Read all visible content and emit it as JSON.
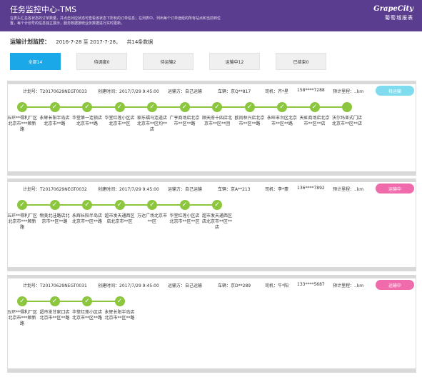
{
  "header": {
    "title": "任务监控中心-TMS",
    "desc": "在表头汇总各状态的订单数量，并点击对应状态可查看该状态下所有的订单信息；在列表中，列出每个订单途经的所有站点和当前到位置，每个计划号的信息独立展示，服务数据按统业务数据进行实时更新。",
    "logo_mark": "GrapeCity",
    "logo_cn": "葡萄城报表"
  },
  "summary": {
    "label": "运输计划监控：",
    "date_range": "2016-7-28 至 2017-7-28，",
    "count": "共14条数据"
  },
  "filters": [
    {
      "label": "全部14",
      "active": true
    },
    {
      "label": "待调度0",
      "active": false
    },
    {
      "label": "待运输2",
      "active": false
    },
    {
      "label": "运输中12",
      "active": false
    },
    {
      "label": "已结束0",
      "active": false
    }
  ],
  "orders": [
    {
      "plan": "计划号：T20170629NEGT0033",
      "created": "创建时间：2017/7/29 9:45:00",
      "carrier": "运输方：自己运输",
      "vehicle": "车辆：京Q**817",
      "driver": "司机：齐*星",
      "phone": "158****7288",
      "mileage": "预计里程：..km",
      "status": "待运输",
      "status_color": "#7fdcef",
      "stops": [
        "五环**得利厂区北京市***顺新路",
        "永辉长阳半岛店北京市**路",
        "华堂第一连锁店北京市**路",
        "华堂红莲小区店北京市**区",
        "家乐福马连道店北京市**区均**店",
        "广亨商场店北京市**区**路",
        "顺天府十四店北京市**区**团",
        "欧尚林兴店北京市**区**路",
        "永旺丰台区北京市**区**路",
        "天虹商场店北京市**区**店",
        "沃尔玛亚式门店北京市**区**店"
      ],
      "done": 10
    },
    {
      "plan": "计划号：T20170629NEGT0032",
      "created": "创建时间：2017/7/29 9:45:00",
      "carrier": "运输方：自己运输",
      "vehicle": "车辆：京A**213",
      "driver": "司机：李*豪",
      "phone": "136****7892",
      "mileage": "预计里程：..km",
      "status": "运输中",
      "status_color": "#f06bab",
      "stops": [
        "五环**得利厂区北京市***顺新路",
        "物美北洼路店北京市**区**路",
        "永辉长阳半岛店北京市**区**路",
        "超市发天通西区店北京市**区",
        "万达广场北京市**区",
        "华堂红莲小区店北京市**区**区",
        "超市发天通西区店北京市**区**店"
      ],
      "done": 7
    },
    {
      "plan": "计划号：T20170629NEGT0031",
      "created": "创建时间：2017/7/29 9:45:00",
      "carrier": "运输方：自己运输",
      "vehicle": "车辆：京D**289",
      "driver": "司机：牛*阳",
      "phone": "133****5687",
      "mileage": "预计里程：..km",
      "status": "运输中",
      "status_color": "#f06bab",
      "stops": [
        "五环**得利厂区北京市***顺新路",
        "超市发甘家口店北京市**区**路",
        "华堂红莲小区店北京市**区**路",
        "永辉长阳半岛店北京市**区**路"
      ],
      "done": 4
    }
  ]
}
